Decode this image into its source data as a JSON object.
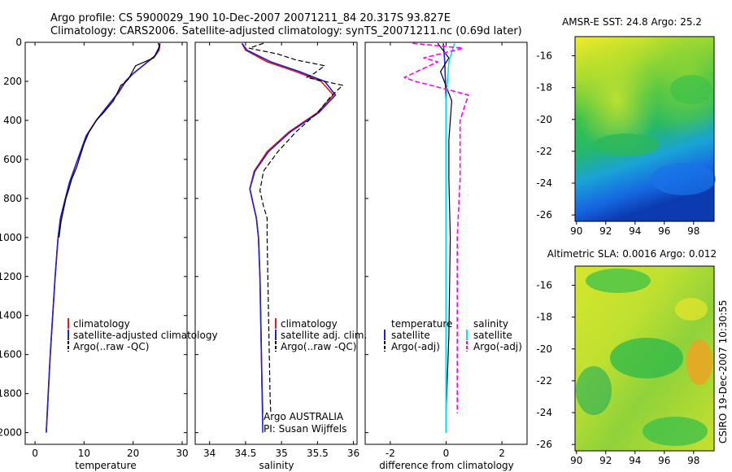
{
  "header": {
    "line1": "Argo profile: CS 5900029_190 10-Dec-2007 20071211_84 20.317S 93.827E",
    "line2": "Climatology: CARS2006. Satellite-adjusted climatology: synTS_20071211.nc (0.69d later)"
  },
  "side_note": "CSIRO 19-Dec-2007 10:30:55",
  "colors": {
    "climatology": "#e41a1c",
    "satellite": "#1f1fd6",
    "argo": "#000000",
    "satellite_sal": "#00e5ee",
    "argo_sal": "#ff00ff"
  },
  "chart_data": [
    {
      "type": "line",
      "xlabel": "temperature",
      "xticks": [
        0,
        10,
        20,
        30
      ],
      "yticks": [
        0,
        200,
        400,
        600,
        800,
        1000,
        1200,
        1400,
        1600,
        1800,
        2000
      ],
      "xlim": [
        -2,
        31
      ],
      "ylim": [
        2060,
        0
      ],
      "legend": [
        "climatology",
        "satellite-adjusted climatology",
        "Argo(..raw -QC)"
      ],
      "series": [
        {
          "name": "climatology",
          "points": [
            [
              25.5,
              5
            ],
            [
              25.3,
              40
            ],
            [
              24.5,
              70
            ],
            [
              22,
              120
            ],
            [
              20,
              160
            ],
            [
              18.5,
              200
            ],
            [
              17,
              260
            ],
            [
              15,
              320
            ],
            [
              12.5,
              400
            ],
            [
              10.5,
              480
            ],
            [
              9,
              580
            ],
            [
              8,
              650
            ],
            [
              7,
              720
            ],
            [
              6.2,
              800
            ],
            [
              5.2,
              900
            ],
            [
              4.7,
              1000
            ],
            [
              4.1,
              1200
            ],
            [
              3.6,
              1400
            ],
            [
              3.1,
              1600
            ],
            [
              2.7,
              1800
            ],
            [
              2.3,
              2000
            ]
          ]
        },
        {
          "name": "satellite-adjusted climatology",
          "points": [
            [
              25.4,
              5
            ],
            [
              25.2,
              40
            ],
            [
              24.4,
              70
            ],
            [
              22,
              120
            ],
            [
              20,
              160
            ],
            [
              18.4,
              200
            ],
            [
              16.9,
              260
            ],
            [
              15,
              320
            ],
            [
              12.5,
              400
            ],
            [
              10.4,
              480
            ],
            [
              9,
              580
            ],
            [
              8,
              650
            ],
            [
              7,
              720
            ],
            [
              6.2,
              800
            ],
            [
              5.2,
              900
            ],
            [
              4.7,
              1000
            ],
            [
              4.1,
              1200
            ],
            [
              3.6,
              1400
            ],
            [
              3.1,
              1600
            ],
            [
              2.7,
              1800
            ],
            [
              2.3,
              2000
            ]
          ]
        },
        {
          "name": "Argo(..raw -QC)",
          "points": [
            [
              25.1,
              5
            ],
            [
              25.4,
              20
            ],
            [
              24.2,
              80
            ],
            [
              20.5,
              120
            ],
            [
              19,
              190
            ],
            [
              18.2,
              210
            ],
            [
              17.5,
              220
            ],
            [
              16,
              300
            ],
            [
              14,
              360
            ],
            [
              12.5,
              400
            ],
            [
              11,
              460
            ],
            [
              10,
              520
            ],
            [
              9.5,
              560
            ],
            [
              8.5,
              640
            ],
            [
              7.5,
              700
            ],
            [
              6.8,
              760
            ],
            [
              6.3,
              800
            ],
            [
              5.8,
              860
            ],
            [
              5.3,
              920
            ],
            [
              4.9,
              1000
            ]
          ]
        }
      ]
    },
    {
      "type": "line",
      "xlabel": "salinity",
      "xticks": [
        34,
        34.5,
        35,
        35.5,
        36
      ],
      "yticks": [],
      "xlim": [
        33.8,
        36.05
      ],
      "ylim": [
        2060,
        0
      ],
      "legend": [
        "climatology",
        "satellite adj. clim.",
        "Argo(..raw -QC)"
      ],
      "annotation": [
        "Argo AUSTRALIA",
        "PI: Susan Wijffels"
      ],
      "series": [
        {
          "name": "climatology",
          "points": [
            [
              34.45,
              5
            ],
            [
              34.5,
              40
            ],
            [
              34.8,
              100
            ],
            [
              35.2,
              150
            ],
            [
              35.55,
              200
            ],
            [
              35.72,
              270
            ],
            [
              35.5,
              360
            ],
            [
              35.1,
              460
            ],
            [
              34.8,
              560
            ],
            [
              34.62,
              660
            ],
            [
              34.56,
              750
            ],
            [
              34.6,
              820
            ],
            [
              34.65,
              900
            ],
            [
              34.68,
              1000
            ],
            [
              34.7,
              1200
            ],
            [
              34.71,
              1400
            ],
            [
              34.72,
              1600
            ],
            [
              34.73,
              1800
            ],
            [
              34.74,
              1900
            ]
          ]
        },
        {
          "name": "satellite adj. clim.",
          "points": [
            [
              34.45,
              5
            ],
            [
              34.52,
              40
            ],
            [
              34.85,
              100
            ],
            [
              35.25,
              150
            ],
            [
              35.6,
              200
            ],
            [
              35.75,
              270
            ],
            [
              35.52,
              360
            ],
            [
              35.12,
              460
            ],
            [
              34.82,
              560
            ],
            [
              34.63,
              660
            ],
            [
              34.56,
              750
            ],
            [
              34.6,
              820
            ],
            [
              34.65,
              900
            ],
            [
              34.68,
              1000
            ],
            [
              34.7,
              1200
            ],
            [
              34.71,
              1400
            ],
            [
              34.72,
              1600
            ],
            [
              34.73,
              1800
            ],
            [
              34.74,
              2000
            ]
          ]
        },
        {
          "name": "Argo(..raw -QC)",
          "points": [
            [
              34.75,
              5
            ],
            [
              34.55,
              30
            ],
            [
              34.95,
              60
            ],
            [
              35.2,
              90
            ],
            [
              35.6,
              120
            ],
            [
              35.45,
              160
            ],
            [
              35.35,
              180
            ],
            [
              35.85,
              220
            ],
            [
              35.68,
              280
            ],
            [
              35.5,
              360
            ],
            [
              35.2,
              460
            ],
            [
              34.95,
              560
            ],
            [
              34.75,
              660
            ],
            [
              34.7,
              760
            ],
            [
              34.75,
              840
            ],
            [
              34.8,
              900
            ],
            [
              34.8,
              1000
            ],
            [
              34.81,
              1200
            ],
            [
              34.82,
              1400
            ],
            [
              34.83,
              1600
            ],
            [
              34.84,
              1800
            ],
            [
              34.85,
              1900
            ]
          ]
        }
      ]
    },
    {
      "type": "line",
      "xlabel": "difference from climatology",
      "xticks": [
        -2,
        0,
        2
      ],
      "yticks": [],
      "xlim": [
        -2.9,
        2.9
      ],
      "ylim": [
        2060,
        0
      ],
      "legend_temperature": [
        "temperature",
        "satellite",
        "Argo(-adj)"
      ],
      "legend_salinity": [
        "salinity",
        "satellite",
        "Argo(-adj)"
      ],
      "series": [
        {
          "name": "satellite",
          "points": [
            [
              -0.1,
              5
            ],
            [
              -0.05,
              100
            ],
            [
              0,
              300
            ],
            [
              0,
              600
            ],
            [
              0,
              1000
            ],
            [
              0,
              1500
            ],
            [
              0,
              2000
            ]
          ]
        },
        {
          "name": "Argo(-adj)",
          "points": [
            [
              -0.3,
              5
            ],
            [
              0.1,
              80
            ],
            [
              -0.2,
              150
            ],
            [
              0.2,
              300
            ],
            [
              0.1,
              500
            ],
            [
              0.1,
              700
            ],
            [
              0.15,
              1000
            ],
            [
              0.1,
              1500
            ],
            [
              0,
              1900
            ]
          ]
        },
        {
          "name": "satellite",
          "points": [
            [
              0.3,
              5
            ],
            [
              0.1,
              100
            ],
            [
              0,
              300
            ],
            [
              0,
              1000
            ],
            [
              0,
              2000
            ]
          ]
        },
        {
          "name": "Argo(-adj)",
          "points": [
            [
              -1.2,
              5
            ],
            [
              0.6,
              30
            ],
            [
              -0.8,
              80
            ],
            [
              -0.3,
              100
            ],
            [
              -1.5,
              180
            ],
            [
              -1.1,
              200
            ],
            [
              0.8,
              270
            ],
            [
              0.5,
              400
            ],
            [
              0.5,
              700
            ],
            [
              0.4,
              1000
            ],
            [
              0.4,
              1500
            ],
            [
              0.4,
              1900
            ]
          ]
        }
      ]
    }
  ],
  "maps": [
    {
      "title": "AMSR-E SST: 24.8 Argo: 25.2",
      "xticks": [
        90,
        92,
        94,
        96,
        98
      ],
      "yticks": [
        -16,
        -18,
        -20,
        -22,
        -24,
        -26
      ],
      "marker": [
        93.83,
        -20.32
      ],
      "xlim": [
        89.9,
        99.4
      ],
      "ylim": [
        -26.4,
        -14.8
      ]
    },
    {
      "title": "Altimetric SLA: 0.0016 Argo: 0.012",
      "xticks": [
        90,
        92,
        94,
        96,
        98
      ],
      "yticks": [
        -16,
        -18,
        -20,
        -22,
        -24,
        -26
      ],
      "marker": [
        93.83,
        -20.32
      ],
      "xlim": [
        89.9,
        99.4
      ],
      "ylim": [
        -26.4,
        -14.8
      ]
    }
  ]
}
